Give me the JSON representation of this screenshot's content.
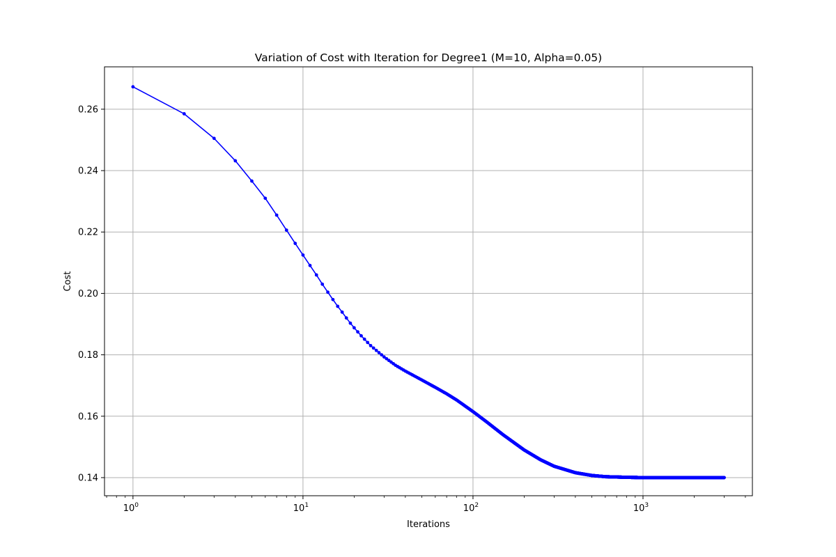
{
  "chart_data": {
    "type": "line",
    "title": "Variation of Cost with Iteration for Degree1 (M=10, Alpha=0.05)",
    "xlabel": "Iterations",
    "ylabel": "Cost",
    "xscale": "log",
    "xlim": [
      0.68,
      4400
    ],
    "ylim": [
      0.1341,
      0.2738
    ],
    "grid": true,
    "x_ticks": [
      {
        "value": 1,
        "base": "10",
        "exp": "0"
      },
      {
        "value": 10,
        "base": "10",
        "exp": "1"
      },
      {
        "value": 100,
        "base": "10",
        "exp": "2"
      },
      {
        "value": 1000,
        "base": "10",
        "exp": "3"
      }
    ],
    "y_ticks": [
      {
        "value": 0.14,
        "label": "0.14"
      },
      {
        "value": 0.16,
        "label": "0.16"
      },
      {
        "value": 0.18,
        "label": "0.18"
      },
      {
        "value": 0.2,
        "label": "0.20"
      },
      {
        "value": 0.22,
        "label": "0.22"
      },
      {
        "value": 0.24,
        "label": "0.24"
      },
      {
        "value": 0.26,
        "label": "0.26"
      }
    ],
    "series": [
      {
        "name": "Cost",
        "color": "#0000ff",
        "marker": "circle",
        "x": [
          1,
          2,
          3,
          4,
          5,
          6,
          7,
          8,
          9,
          10,
          11,
          12,
          13,
          14,
          15,
          16,
          17,
          18,
          19,
          20,
          22,
          25,
          30,
          35,
          40,
          50,
          60,
          70,
          80,
          100,
          120,
          150,
          200,
          250,
          300,
          400,
          500,
          600,
          800,
          1000,
          1500,
          2000,
          3000
        ],
        "y": [
          0.2673,
          0.2585,
          0.2505,
          0.2432,
          0.2366,
          0.231,
          0.2255,
          0.2206,
          0.2163,
          0.2125,
          0.2091,
          0.206,
          0.203,
          0.2004,
          0.198,
          0.1958,
          0.1939,
          0.192,
          0.1903,
          0.1888,
          0.1862,
          0.183,
          0.1793,
          0.1766,
          0.1747,
          0.1718,
          0.1694,
          0.1673,
          0.1653,
          0.1615,
          0.1582,
          0.154,
          0.149,
          0.1458,
          0.1437,
          0.1416,
          0.1407,
          0.1403,
          0.1401,
          0.14,
          0.14,
          0.14,
          0.14
        ]
      }
    ]
  }
}
